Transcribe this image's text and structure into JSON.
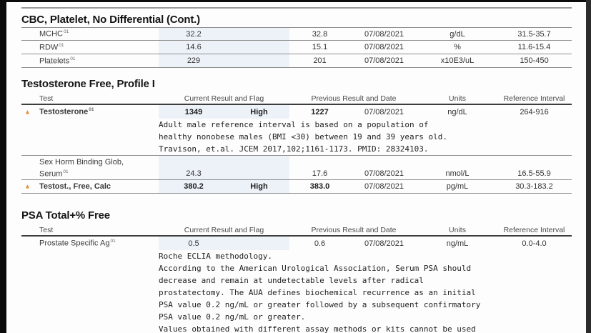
{
  "colors": {
    "band": "#edf2f8",
    "alert": "#df913e"
  },
  "sections": [
    {
      "title": "CBC, Platelet, No Differential (Cont.)",
      "rows": [
        {
          "name": "MCHC",
          "sup": "01",
          "current": "32.2",
          "previous": "32.8",
          "date": "07/08/2021",
          "units": "g/dL",
          "reference": "31.5-35.7"
        },
        {
          "name": "RDW",
          "sup": "01",
          "current": "14.6",
          "previous": "15.1",
          "date": "07/08/2021",
          "units": "%",
          "reference": "11.6-15.4"
        },
        {
          "name": "Platelets",
          "sup": "01",
          "current": "229",
          "previous": "201",
          "date": "07/08/2021",
          "units": "x10E3/uL",
          "reference": "150-450"
        }
      ]
    },
    {
      "title": "Testosterone Free, Profile I",
      "headers": {
        "test": "Test",
        "current": "Current Result and Flag",
        "previous": "Previous Result and Date",
        "units": "Units",
        "reference": "Reference Interval"
      },
      "rows": [
        {
          "name": "Testosterone",
          "sup": "01",
          "alert": "▲",
          "current": "1349",
          "flag": "High",
          "previous": "1227",
          "date": "07/08/2021",
          "units": "ng/dL",
          "reference": "264-916",
          "comments": [
            "Adult male reference interval is based on a population of",
            "healthy nonobese males (BMI <30) between 19 and 39 years old.",
            "Travison, et.al. JCEM 2017,102;1161-1173. PMID: 28324103."
          ]
        },
        {
          "name_line1": "Sex Horm Binding Glob,",
          "name_line2": "Serum",
          "sup": "01",
          "current": "24.3",
          "previous": "17.6",
          "date": "07/08/2021",
          "units": "nmol/L",
          "reference": "16.5-55.9"
        },
        {
          "name": "Testost., Free, Calc",
          "alert": "▲",
          "current": "380.2",
          "flag": "High",
          "previous": "383.0",
          "date": "07/08/2021",
          "units": "pg/mL",
          "reference": "30.3-183.2"
        }
      ]
    },
    {
      "title": "PSA Total+% Free",
      "headers": {
        "test": "Test",
        "current": "Current Result and Flag",
        "previous": "Previous Result and Date",
        "units": "Units",
        "reference": "Reference Interval"
      },
      "rows": [
        {
          "name": "Prostate Specific Ag",
          "sup": "01",
          "current": "0.5",
          "previous": "0.6",
          "date": "07/08/2021",
          "units": "ng/mL",
          "reference": "0.0-4.0",
          "comments": [
            "Roche ECLIA methodology.",
            "According to the American Urological Association, Serum PSA should",
            "decrease and remain at undetectable levels after radical",
            "prostatectomy. The AUA defines biochemical recurrence as an initial",
            "PSA value 0.2 ng/mL or greater followed by a subsequent confirmatory",
            "PSA value 0.2 ng/mL or greater.",
            "Values obtained with different assay methods or kits cannot be used"
          ]
        }
      ]
    }
  ]
}
